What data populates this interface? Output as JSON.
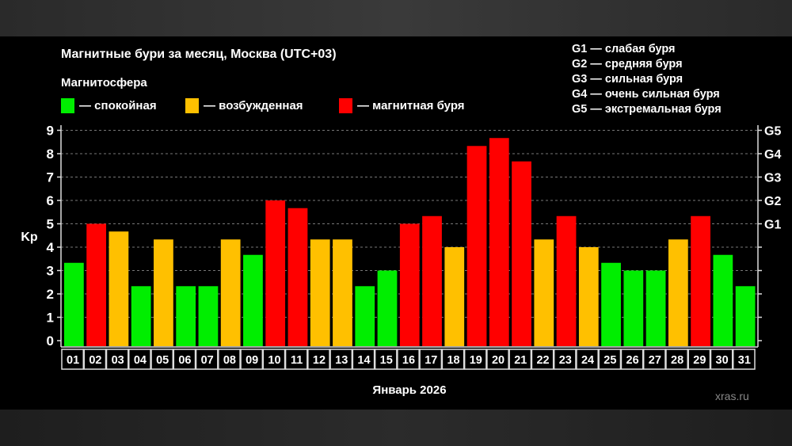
{
  "chart_data": {
    "type": "bar",
    "title": "Магнитные бури за месяц, Москва (UTC+03)",
    "legend_title": "Магнитосфера",
    "legend": [
      {
        "label": "— спокойная",
        "color": "#00ee00"
      },
      {
        "label": "— возбужденная",
        "color": "#ffc000"
      },
      {
        "label": "— магнитная буря",
        "color": "#ff0000"
      }
    ],
    "g_scale": [
      "G1 — слабая буря",
      "G2 — средняя буря",
      "G3 — сильная буря",
      "G4 — очень сильная буря",
      "G5 — экстремальная буря"
    ],
    "xlabel": "Январь 2026",
    "ylabel": "Kp",
    "ylim": [
      0,
      9
    ],
    "yticks": [
      "0",
      "1",
      "2",
      "3",
      "4",
      "5",
      "6",
      "7",
      "8",
      "9"
    ],
    "right_ticks": [
      "G1",
      "G2",
      "G3",
      "G4",
      "G5"
    ],
    "grid": true,
    "categories": [
      "01",
      "02",
      "03",
      "04",
      "05",
      "06",
      "07",
      "08",
      "09",
      "10",
      "11",
      "12",
      "13",
      "14",
      "15",
      "16",
      "17",
      "18",
      "19",
      "20",
      "21",
      "22",
      "23",
      "24",
      "25",
      "26",
      "27",
      "28",
      "29",
      "30",
      "31"
    ],
    "values": [
      3.33,
      5,
      4.67,
      2.33,
      4.33,
      2.33,
      2.33,
      4.33,
      3.67,
      6,
      5.67,
      4.33,
      4.33,
      2.33,
      3,
      5,
      5.33,
      4,
      8.33,
      8.67,
      7.67,
      4.33,
      5.33,
      4,
      3.33,
      3,
      3,
      4.33,
      5.33,
      3.67,
      2.33
    ]
  },
  "watermark": "xras.ru"
}
